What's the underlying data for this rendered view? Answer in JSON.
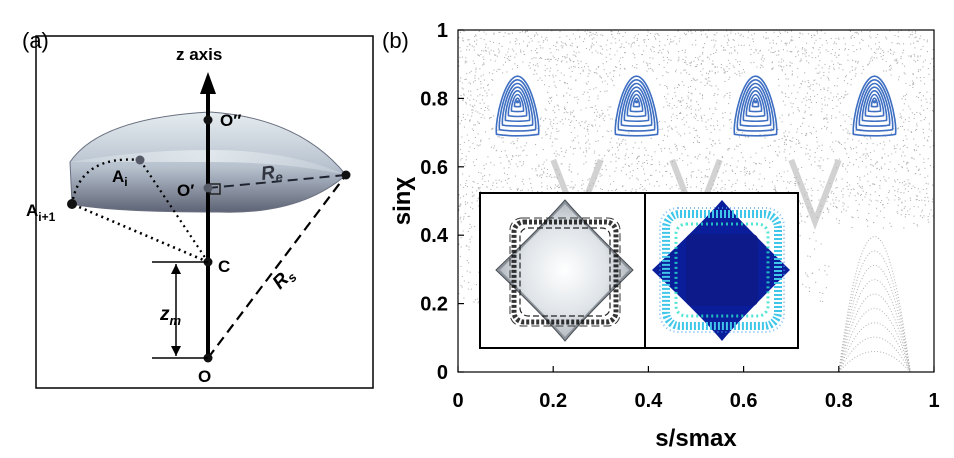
{
  "panel_a": {
    "label": "(a)",
    "z_axis_label": "z axis",
    "points": {
      "O_double_prime": "O″",
      "O_prime": "O′",
      "C": "C",
      "O": "O",
      "A_i_base": "A",
      "A_i_sub": "i",
      "A_i1_base": "A",
      "A_i1_sub": "i+1"
    },
    "lengths": {
      "Re_base": "R",
      "Re_sub": "e",
      "Rs_base": "R",
      "Rs_sub": "s",
      "zm_base": "z",
      "zm_sub": "m"
    }
  },
  "panel_b": {
    "label": "(b)",
    "colors": {
      "islands": "#3e6fc2",
      "chaotic_sea": "#b4b4b4",
      "inset_left_fill": "#d8dee2",
      "inset_right_fill": "#0a1e9c",
      "inset_right_ring": "#3fc6e8"
    },
    "chart_data": {
      "type": "scatter",
      "xlabel": "s/smax",
      "ylabel": "sinχ",
      "xlim": [
        0,
        1
      ],
      "ylim": [
        0,
        1
      ],
      "x_ticks": [
        "0",
        "0.2",
        "0.4",
        "0.6",
        "0.8",
        "1"
      ],
      "y_ticks": [
        "0",
        "0.2",
        "0.4",
        "0.6",
        "0.8",
        "1"
      ],
      "grid": false,
      "islands": [
        {
          "x": 0.125,
          "y": 0.79
        },
        {
          "x": 0.375,
          "y": 0.79
        },
        {
          "x": 0.625,
          "y": 0.79
        },
        {
          "x": 0.875,
          "y": 0.79
        }
      ],
      "island_halfwidth_x": 0.048,
      "island_top_y": 0.865,
      "island_bottom_y": 0.695,
      "contours_per_island": 7
    }
  }
}
